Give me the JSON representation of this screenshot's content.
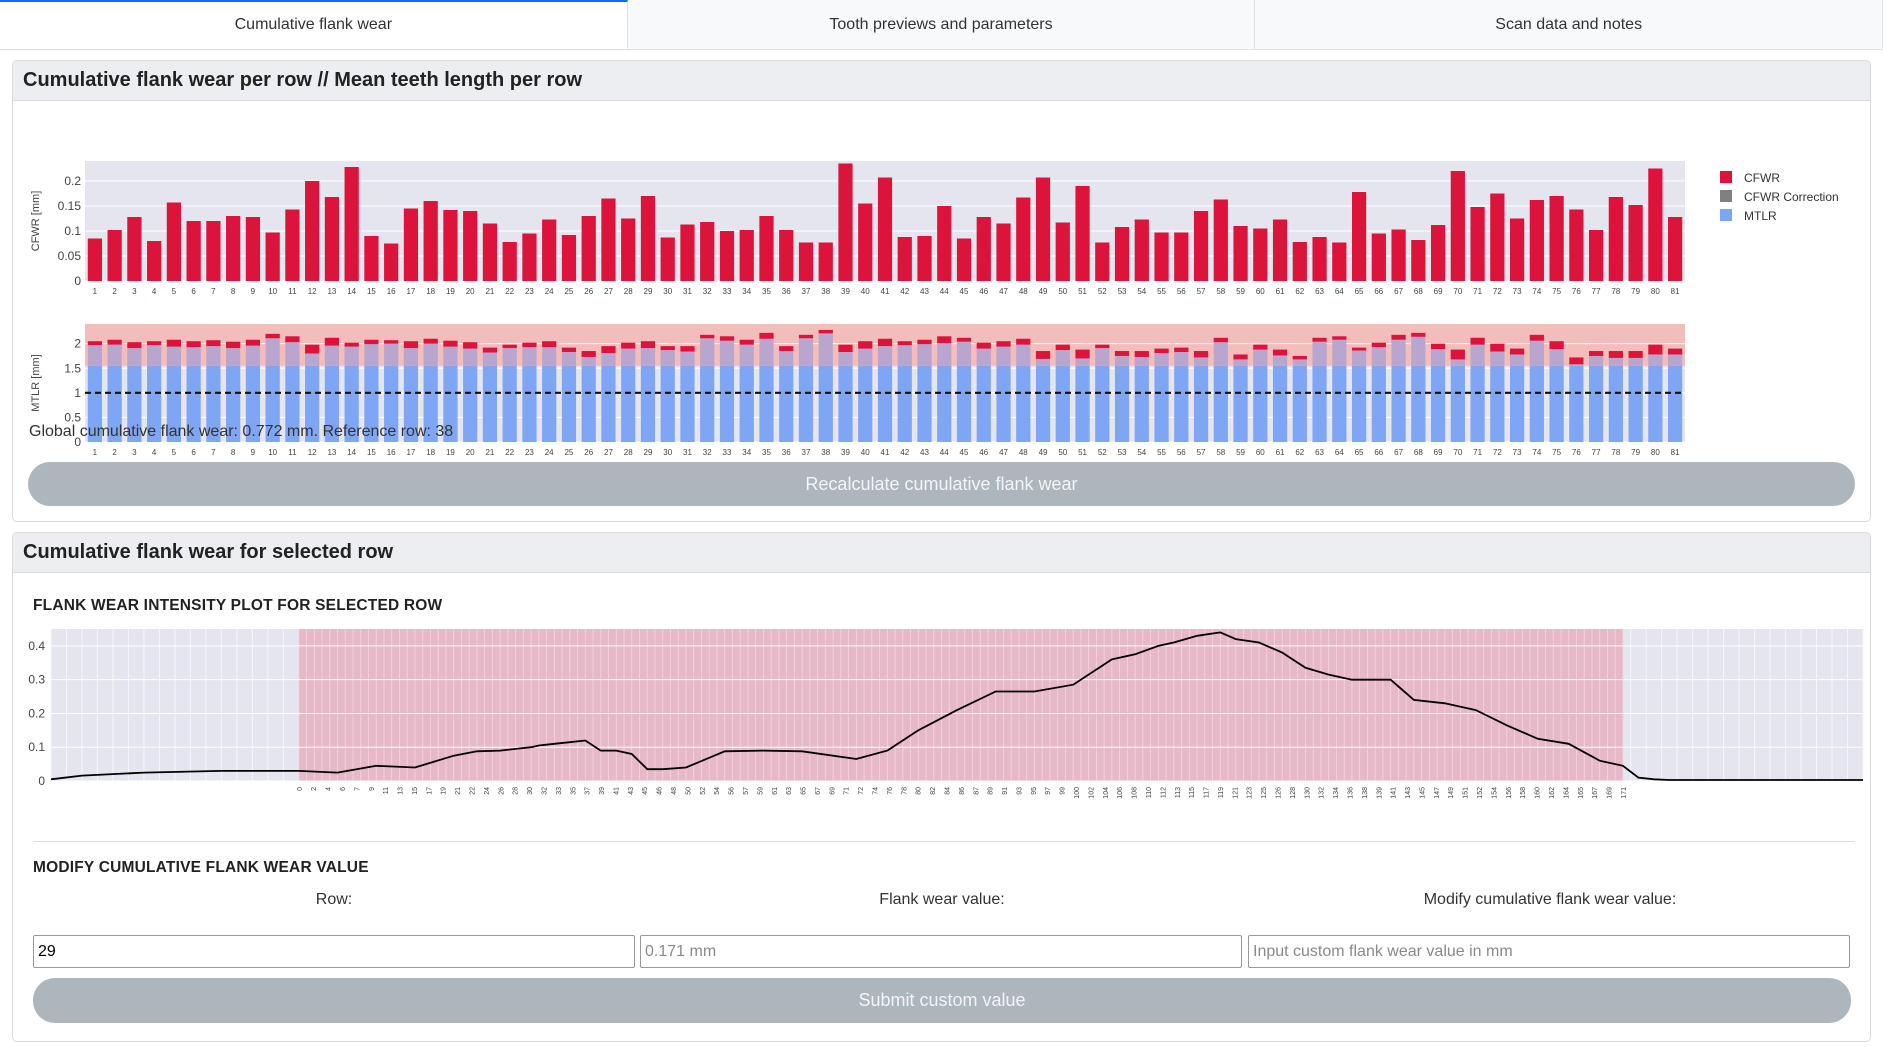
{
  "tabs": [
    {
      "label": "Cumulative flank wear"
    },
    {
      "label": "Tooth previews and parameters"
    },
    {
      "label": "Scan data and notes"
    }
  ],
  "section1": {
    "title": "Cumulative flank wear per row // Mean teeth length per row",
    "status": "Global cumulative flank wear: 0.772 mm. Reference row: 38",
    "button_label": "Recalculate cumulative flank wear"
  },
  "section2": {
    "title": "Cumulative flank wear for selected row",
    "plot_title": "FLANK WEAR INTENSITY PLOT FOR SELECTED ROW",
    "modify_title": "MODIFY CUMULATIVE FLANK WEAR VALUE",
    "row_label": "Row:",
    "row_value": "29",
    "flank_label": "Flank wear value:",
    "flank_value": "0.171 mm",
    "modify_label": "Modify cumulative flank wear value:",
    "modify_placeholder": "Input custom flank wear value in mm",
    "submit_label": "Submit custom value"
  },
  "colors": {
    "cfwr": "#dc143c",
    "cfwr_correction": "#808080",
    "mtlr": "#7fa6f5",
    "plot_bg": "#e5e5ef",
    "band": "#f2bdbb",
    "highlight": "#e8b0c0",
    "button": "#adb5bd"
  },
  "chart_data": [
    {
      "type": "bar",
      "ylabel": "CFWR [mm]",
      "ylim": [
        0,
        0.24
      ],
      "yticks": [
        "0",
        "0.05",
        "0.1",
        "0.15",
        "0.2"
      ],
      "categories": [
        "1",
        "2",
        "3",
        "4",
        "5",
        "6",
        "7",
        "8",
        "9",
        "10",
        "11",
        "12",
        "13",
        "14",
        "15",
        "16",
        "17",
        "18",
        "19",
        "20",
        "21",
        "22",
        "23",
        "24",
        "25",
        "26",
        "27",
        "28",
        "29",
        "30",
        "31",
        "32",
        "33",
        "34",
        "35",
        "36",
        "37",
        "38",
        "39",
        "40",
        "41",
        "42",
        "43",
        "44",
        "45",
        "46",
        "47",
        "48",
        "49",
        "50",
        "51",
        "52",
        "53",
        "54",
        "55",
        "56",
        "57",
        "58",
        "59",
        "60",
        "61",
        "62",
        "63",
        "64",
        "65",
        "66",
        "67",
        "68",
        "69",
        "70",
        "71",
        "72",
        "73",
        "74",
        "75",
        "76",
        "77",
        "78",
        "79",
        "80",
        "81"
      ],
      "series": [
        {
          "name": "CFWR",
          "values": [
            0.085,
            0.102,
            0.128,
            0.08,
            0.157,
            0.12,
            0.12,
            0.13,
            0.128,
            0.097,
            0.143,
            0.2,
            0.168,
            0.228,
            0.09,
            0.075,
            0.145,
            0.16,
            0.142,
            0.14,
            0.115,
            0.078,
            0.095,
            0.123,
            0.092,
            0.13,
            0.165,
            0.125,
            0.17,
            0.087,
            0.113,
            0.118,
            0.1,
            0.102,
            0.13,
            0.102,
            0.077,
            0.077,
            0.235,
            0.155,
            0.207,
            0.088,
            0.09,
            0.15,
            0.085,
            0.128,
            0.115,
            0.167,
            0.207,
            0.117,
            0.19,
            0.077,
            0.108,
            0.123,
            0.097,
            0.097,
            0.14,
            0.163,
            0.11,
            0.105,
            0.123,
            0.078,
            0.088,
            0.077,
            0.178,
            0.095,
            0.103,
            0.082,
            0.112,
            0.22,
            0.148,
            0.175,
            0.125,
            0.162,
            0.17,
            0.143,
            0.102,
            0.168,
            0.152,
            0.225,
            0.128
          ]
        }
      ],
      "legend": [
        "CFWR",
        "CFWR Correction",
        "MTLR"
      ],
      "legend_position": "right"
    },
    {
      "type": "bar",
      "ylabel": "MTLR [mm]",
      "ylim": [
        0,
        2.4
      ],
      "yticks": [
        "0",
        "0.5",
        "1",
        "1.5",
        "2"
      ],
      "reference_line": 1.0,
      "band": [
        1.55,
        2.4
      ],
      "categories": [
        "1",
        "2",
        "3",
        "4",
        "5",
        "6",
        "7",
        "8",
        "9",
        "10",
        "11",
        "12",
        "13",
        "14",
        "15",
        "16",
        "17",
        "18",
        "19",
        "20",
        "21",
        "22",
        "23",
        "24",
        "25",
        "26",
        "27",
        "28",
        "29",
        "30",
        "31",
        "32",
        "33",
        "34",
        "35",
        "36",
        "37",
        "38",
        "39",
        "40",
        "41",
        "42",
        "43",
        "44",
        "45",
        "46",
        "47",
        "48",
        "49",
        "50",
        "51",
        "52",
        "53",
        "54",
        "55",
        "56",
        "57",
        "58",
        "59",
        "60",
        "61",
        "62",
        "63",
        "64",
        "65",
        "66",
        "67",
        "68",
        "69",
        "70",
        "71",
        "72",
        "73",
        "74",
        "75",
        "76",
        "77",
        "78",
        "79",
        "80",
        "81"
      ],
      "series": [
        {
          "name": "MTLR",
          "values": [
            2.05,
            2.08,
            2.03,
            2.05,
            2.08,
            2.05,
            2.07,
            2.04,
            2.08,
            2.2,
            2.15,
            1.98,
            2.12,
            2.02,
            2.08,
            2.07,
            2.05,
            2.1,
            2.06,
            2.03,
            1.92,
            1.98,
            2.02,
            2.05,
            1.92,
            1.85,
            1.95,
            2.02,
            2.05,
            1.95,
            1.95,
            2.18,
            2.15,
            2.08,
            2.22,
            1.95,
            2.18,
            2.28,
            1.98,
            2.05,
            2.1,
            2.05,
            2.08,
            2.15,
            2.12,
            2.02,
            2.05,
            2.1,
            1.85,
            1.98,
            1.88,
            1.98,
            1.85,
            1.85,
            1.9,
            1.92,
            1.85,
            2.12,
            1.78,
            1.98,
            1.88,
            1.75,
            2.12,
            2.15,
            1.92,
            2.02,
            2.18,
            2.22,
            2.0,
            1.88,
            2.12,
            2.0,
            1.9,
            2.18,
            2.05,
            1.72,
            1.85,
            1.85,
            1.85,
            1.98,
            1.9
          ]
        },
        {
          "name": "CFWR",
          "values": [
            0.08,
            0.1,
            0.12,
            0.08,
            0.14,
            0.12,
            0.12,
            0.13,
            0.12,
            0.09,
            0.12,
            0.18,
            0.16,
            0.08,
            0.09,
            0.07,
            0.14,
            0.1,
            0.12,
            0.13,
            0.1,
            0.07,
            0.09,
            0.12,
            0.09,
            0.12,
            0.14,
            0.12,
            0.14,
            0.08,
            0.11,
            0.07,
            0.09,
            0.1,
            0.12,
            0.1,
            0.07,
            0.07,
            0.15,
            0.15,
            0.15,
            0.08,
            0.09,
            0.14,
            0.08,
            0.12,
            0.11,
            0.12,
            0.16,
            0.11,
            0.18,
            0.07,
            0.1,
            0.12,
            0.09,
            0.09,
            0.13,
            0.09,
            0.1,
            0.1,
            0.12,
            0.07,
            0.08,
            0.07,
            0.06,
            0.09,
            0.1,
            0.08,
            0.11,
            0.2,
            0.14,
            0.16,
            0.12,
            0.12,
            0.16,
            0.14,
            0.1,
            0.14,
            0.14,
            0.2,
            0.12
          ]
        }
      ]
    },
    {
      "type": "line",
      "ylim": [
        0,
        0.45
      ],
      "yticks": [
        "0",
        "0.1",
        "0.2",
        "0.3",
        "0.4"
      ],
      "x_range": [
        -32,
        202
      ],
      "highlight_range": [
        0,
        171
      ],
      "x_tick_labels": [
        "0",
        "2",
        "4",
        "6",
        "7",
        "9",
        "11",
        "13",
        "15",
        "17",
        "19",
        "21",
        "22",
        "24",
        "26",
        "28",
        "30",
        "32",
        "33",
        "35",
        "37",
        "39",
        "41",
        "43",
        "45",
        "46",
        "48",
        "50",
        "52",
        "54",
        "56",
        "57",
        "59",
        "61",
        "63",
        "65",
        "67",
        "69",
        "71",
        "72",
        "74",
        "76",
        "78",
        "80",
        "82",
        "84",
        "86",
        "87",
        "89",
        "91",
        "93",
        "95",
        "97",
        "99",
        "100",
        "102",
        "104",
        "106",
        "108",
        "110",
        "112",
        "113",
        "115",
        "117",
        "119",
        "121",
        "123",
        "125",
        "126",
        "128",
        "130",
        "132",
        "134",
        "136",
        "138",
        "139",
        "141",
        "143",
        "145",
        "147",
        "149",
        "151",
        "152",
        "154",
        "156",
        "158",
        "160",
        "162",
        "164",
        "165",
        "167",
        "169",
        "171"
      ],
      "x": [
        -32,
        -28,
        -20,
        -10,
        0,
        5,
        10,
        15,
        20,
        23,
        26,
        28,
        30,
        31,
        33,
        35,
        37,
        39,
        41,
        43,
        45,
        47,
        50,
        55,
        60,
        65,
        72,
        76,
        80,
        85,
        90,
        95,
        100,
        105,
        108,
        111,
        113,
        116,
        119,
        121,
        124,
        127,
        130,
        133,
        136,
        138,
        141,
        144,
        148,
        152,
        156,
        160,
        164,
        168,
        171,
        173,
        175,
        177,
        181,
        185,
        190,
        195,
        202
      ],
      "values": [
        0.005,
        0.016,
        0.025,
        0.03,
        0.03,
        0.025,
        0.045,
        0.04,
        0.075,
        0.088,
        0.09,
        0.095,
        0.1,
        0.105,
        0.11,
        0.115,
        0.12,
        0.09,
        0.09,
        0.08,
        0.035,
        0.035,
        0.04,
        0.088,
        0.09,
        0.088,
        0.065,
        0.09,
        0.15,
        0.21,
        0.265,
        0.265,
        0.285,
        0.36,
        0.375,
        0.4,
        0.41,
        0.43,
        0.44,
        0.42,
        0.41,
        0.38,
        0.335,
        0.315,
        0.3,
        0.3,
        0.3,
        0.24,
        0.23,
        0.21,
        0.165,
        0.125,
        0.11,
        0.06,
        0.045,
        0.01,
        0.005,
        0.003,
        0.003,
        0.003,
        0.003,
        0.003,
        0.003
      ]
    }
  ]
}
